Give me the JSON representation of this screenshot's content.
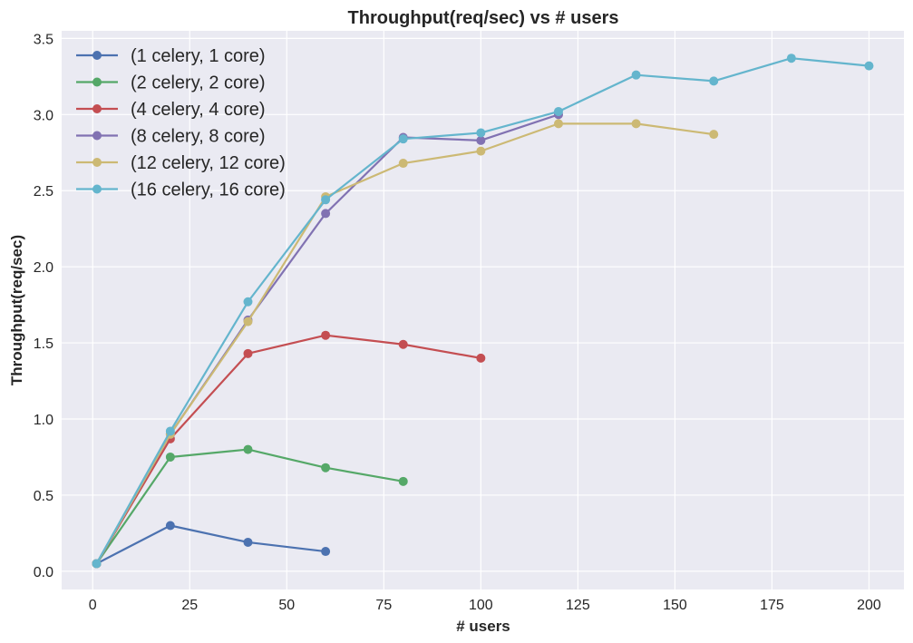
{
  "chart_data": {
    "type": "line",
    "title": "Throughput(req/sec) vs # users",
    "xlabel": "# users",
    "ylabel": "Throughput(req/sec)",
    "xlim": [
      -8,
      209
    ],
    "ylim": [
      -0.12,
      3.55
    ],
    "xticks": [
      0,
      25,
      50,
      75,
      100,
      125,
      150,
      175,
      200
    ],
    "yticks": [
      0.0,
      0.5,
      1.0,
      1.5,
      2.0,
      2.5,
      3.0,
      3.5
    ],
    "xtick_labels": [
      "0",
      "25",
      "50",
      "75",
      "100",
      "125",
      "150",
      "175",
      "200"
    ],
    "ytick_labels": [
      "0.0",
      "0.5",
      "1.0",
      "1.5",
      "2.0",
      "2.5",
      "3.0",
      "3.5"
    ],
    "grid": true,
    "legend_position": "top-left",
    "series": [
      {
        "name": "(1 celery, 1 core)",
        "color": "#4c72b0",
        "x": [
          1,
          20,
          40,
          60
        ],
        "y": [
          0.05,
          0.3,
          0.19,
          0.13
        ]
      },
      {
        "name": "(2 celery, 2 core)",
        "color": "#55a868",
        "x": [
          1,
          20,
          40,
          60,
          80
        ],
        "y": [
          0.05,
          0.75,
          0.8,
          0.68,
          0.59
        ]
      },
      {
        "name": "(4 celery, 4 core)",
        "color": "#c44e52",
        "x": [
          1,
          20,
          40,
          60,
          80,
          100
        ],
        "y": [
          0.05,
          0.87,
          1.43,
          1.55,
          1.49,
          1.4
        ]
      },
      {
        "name": "(8 celery, 8 core)",
        "color": "#8172b2",
        "x": [
          1,
          20,
          40,
          60,
          80,
          100,
          120
        ],
        "y": [
          0.05,
          0.9,
          1.65,
          2.35,
          2.85,
          2.83,
          3.0
        ]
      },
      {
        "name": "(12 celery, 12 core)",
        "color": "#ccb974",
        "x": [
          1,
          20,
          40,
          60,
          80,
          100,
          120,
          140,
          160
        ],
        "y": [
          0.05,
          0.9,
          1.64,
          2.46,
          2.68,
          2.76,
          2.94,
          2.94,
          2.87
        ]
      },
      {
        "name": "(16 celery, 16 core)",
        "color": "#64b5cd",
        "x": [
          1,
          20,
          40,
          60,
          80,
          100,
          120,
          140,
          160,
          180,
          200
        ],
        "y": [
          0.05,
          0.92,
          1.77,
          2.44,
          2.84,
          2.88,
          3.02,
          3.26,
          3.22,
          3.37,
          3.32
        ]
      }
    ]
  },
  "style": {
    "plot_background": "#eaeaf2",
    "grid_color": "#ffffff",
    "text_color": "#262626"
  }
}
